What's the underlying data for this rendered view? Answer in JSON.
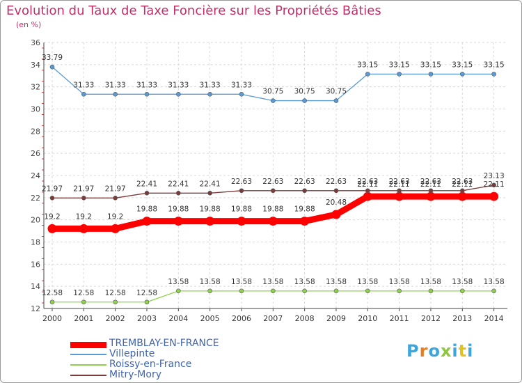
{
  "header": {
    "title": "Evolution du Taux de Taxe Foncière sur les Propriétés Bâties",
    "unit": "(en %)"
  },
  "brand": {
    "logo_text": "Proxiti",
    "letter_colors": [
      "#3aa6dc",
      "#e87d1e",
      "#3aa6dc",
      "#8dc63f",
      "#3aa6dc",
      "#e2c21d",
      "#3aa6dc"
    ]
  },
  "chart_data": {
    "type": "line",
    "title": "Evolution du Taux de Taxe Foncière sur les Propriétés Bâties",
    "ylabel": "(en %)",
    "xlabel": "",
    "x": [
      2000,
      2001,
      2002,
      2003,
      2004,
      2005,
      2006,
      2007,
      2008,
      2009,
      2010,
      2011,
      2012,
      2013,
      2014
    ],
    "x_tick_labels": [
      "2000",
      "2001",
      "2002",
      "2003",
      "2004",
      "2005",
      "2006",
      "2007",
      "2008",
      "2009",
      "2010",
      "2011",
      "2012",
      "2013",
      "2014"
    ],
    "ylim": [
      12,
      36
    ],
    "y_ticks": [
      12,
      14,
      16,
      18,
      20,
      22,
      24,
      26,
      28,
      30,
      32,
      34,
      36
    ],
    "y_tick_labels": [
      "12",
      "14",
      "16",
      "18",
      "20",
      "22",
      "24",
      "26",
      "28",
      "30",
      "32",
      "34",
      "36"
    ],
    "grid": true,
    "legend_position": "bottom-left",
    "series": [
      {
        "name": "TREMBLAY-EN-FRANCE",
        "color": "#ff0000",
        "emphasis": true,
        "values": [
          19.2,
          19.2,
          19.2,
          19.88,
          19.88,
          19.88,
          19.88,
          19.88,
          19.88,
          20.48,
          22.11,
          22.11,
          22.11,
          22.11,
          22.11
        ],
        "labels": [
          "19.2",
          "19.2",
          "19.2",
          "19.88",
          "19.88",
          "19.88",
          "19.88",
          "19.88",
          "19.88",
          "20.48",
          "22.11",
          "22.11",
          "22.11",
          "22.11",
          "22.11"
        ]
      },
      {
        "name": "Villepinte",
        "color": "#5b9bd5",
        "emphasis": false,
        "values": [
          33.79,
          31.33,
          31.33,
          31.33,
          31.33,
          31.33,
          31.33,
          30.75,
          30.75,
          30.75,
          33.15,
          33.15,
          33.15,
          33.15,
          33.15
        ],
        "labels": [
          "33.79",
          "31.33",
          "31.33",
          "31.33",
          "31.33",
          "31.33",
          "31.33",
          "30.75",
          "30.75",
          "30.75",
          "33.15",
          "33.15",
          "33.15",
          "33.15",
          "33.15"
        ]
      },
      {
        "name": "Roissy-en-France",
        "color": "#8fd14f",
        "emphasis": false,
        "values": [
          12.58,
          12.58,
          12.58,
          12.58,
          13.58,
          13.58,
          13.58,
          13.58,
          13.58,
          13.58,
          13.58,
          13.58,
          13.58,
          13.58,
          13.58
        ],
        "labels": [
          "12.58",
          "12.58",
          "12.58",
          "12.58",
          "13.58",
          "13.58",
          "13.58",
          "13.58",
          "13.58",
          "13.58",
          "13.58",
          "13.58",
          "13.58",
          "13.58",
          "13.58"
        ]
      },
      {
        "name": "Mitry-Mory",
        "color": "#7b3b3b",
        "emphasis": false,
        "values": [
          21.97,
          21.97,
          21.97,
          22.41,
          22.41,
          22.41,
          22.63,
          22.63,
          22.63,
          22.63,
          22.63,
          22.63,
          22.63,
          22.63,
          23.13
        ],
        "labels": [
          "21.97",
          "21.97",
          "21.97",
          "22.41",
          "22.41",
          "22.41",
          "22.63",
          "22.63",
          "22.63",
          "22.63",
          "22.63",
          "22.63",
          "22.63",
          "22.63",
          "23.13"
        ]
      }
    ]
  }
}
